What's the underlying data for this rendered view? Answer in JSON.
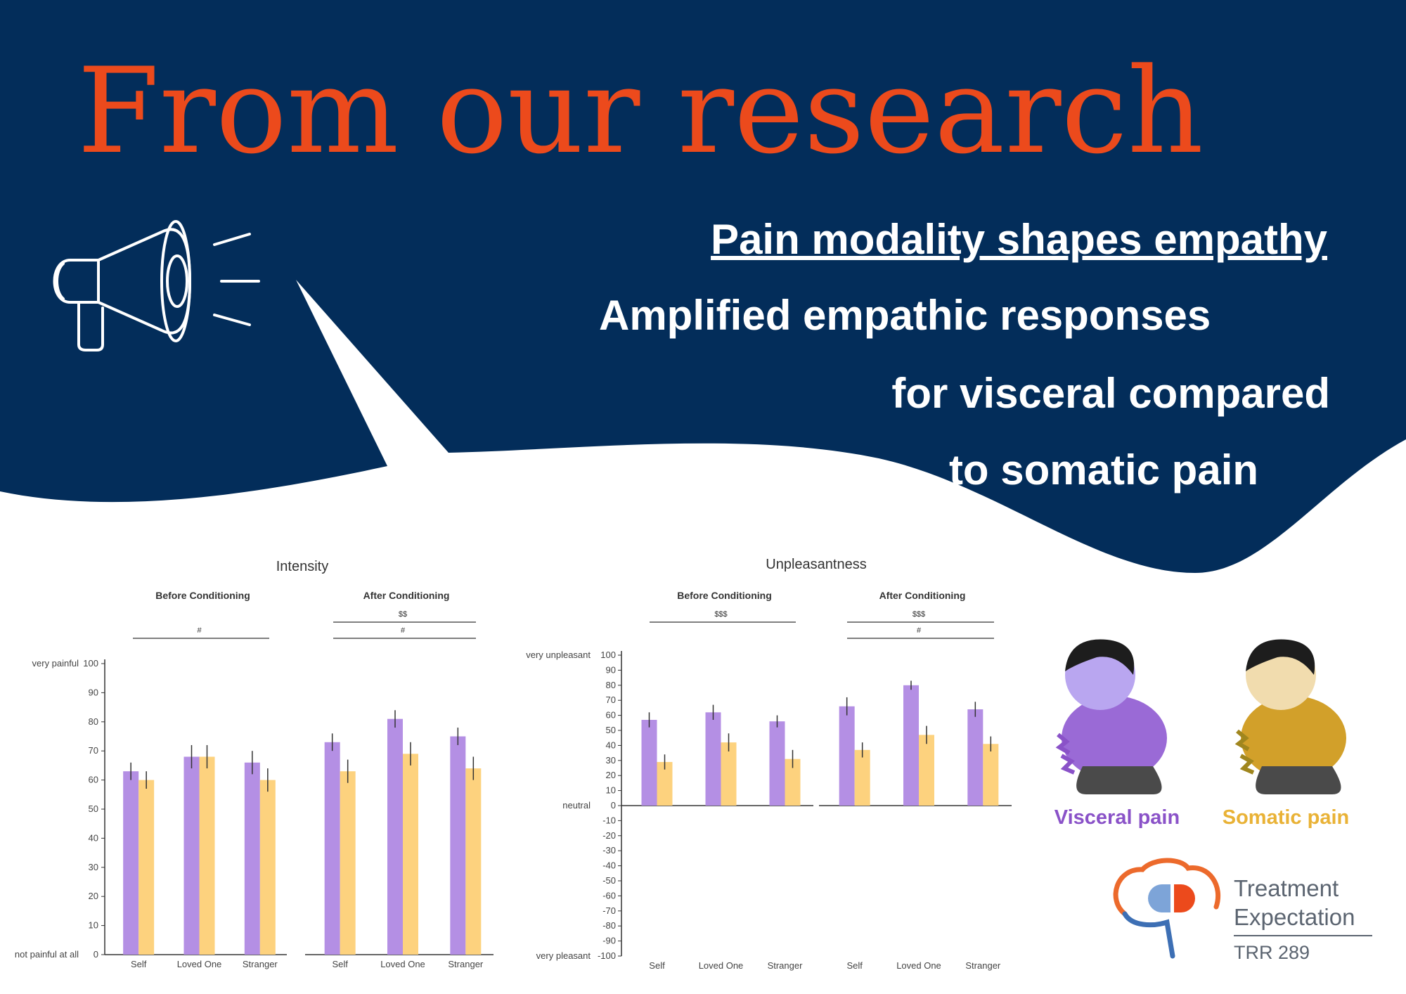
{
  "header": {
    "title": "From our research",
    "headline": "Pain modality shapes empathy",
    "body_lines": [
      "Amplified empathic responses",
      "for visceral compared",
      "to somatic pain"
    ]
  },
  "chart_data": [
    {
      "type": "bar",
      "title": "Intensity",
      "ylim": [
        0,
        100
      ],
      "yticks": [
        0,
        10,
        20,
        30,
        40,
        50,
        60,
        70,
        80,
        90,
        100
      ],
      "y_anchor_labels": [
        {
          "value": 100,
          "label": "very painful"
        },
        {
          "value": 0,
          "label": "not painful at all"
        }
      ],
      "categories": [
        "Self",
        "Loved One",
        "Stranger"
      ],
      "panels": [
        {
          "title": "Before Conditioning",
          "annotations": [
            "#"
          ],
          "series": [
            {
              "color": "#b48fe4",
              "values": [
                63,
                68,
                66
              ],
              "errors": [
                3,
                4,
                4
              ]
            },
            {
              "color": "#fdd27e",
              "values": [
                60,
                68,
                60
              ],
              "errors": [
                3,
                4,
                4
              ]
            }
          ]
        },
        {
          "title": "After Conditioning",
          "annotations": [
            "$$",
            "#"
          ],
          "series": [
            {
              "color": "#b48fe4",
              "values": [
                73,
                81,
                75
              ],
              "errors": [
                3,
                3,
                3
              ]
            },
            {
              "color": "#fdd27e",
              "values": [
                63,
                69,
                64
              ],
              "errors": [
                4,
                4,
                4
              ]
            }
          ]
        }
      ]
    },
    {
      "type": "bar",
      "title": "Unpleasantness",
      "ylim": [
        -100,
        100
      ],
      "yticks": [
        -100,
        -90,
        -80,
        -70,
        -60,
        -50,
        -40,
        -30,
        -20,
        -10,
        0,
        10,
        20,
        30,
        40,
        50,
        60,
        70,
        80,
        90,
        100
      ],
      "y_anchor_labels": [
        {
          "value": 100,
          "label": "very unpleasant"
        },
        {
          "value": 0,
          "label": "neutral"
        },
        {
          "value": -100,
          "label": "very pleasant"
        }
      ],
      "categories": [
        "Self",
        "Loved One",
        "Stranger"
      ],
      "panels": [
        {
          "title": "Before Conditioning",
          "annotations": [
            "$$$"
          ],
          "series": [
            {
              "color": "#b48fe4",
              "values": [
                57,
                62,
                56
              ],
              "errors": [
                5,
                5,
                4
              ]
            },
            {
              "color": "#fdd27e",
              "values": [
                29,
                42,
                31
              ],
              "errors": [
                5,
                6,
                6
              ]
            }
          ]
        },
        {
          "title": "After Conditioning",
          "annotations": [
            "$$$",
            "#"
          ],
          "series": [
            {
              "color": "#b48fe4",
              "values": [
                66,
                80,
                64
              ],
              "errors": [
                6,
                3,
                5
              ]
            },
            {
              "color": "#fdd27e",
              "values": [
                37,
                47,
                41
              ],
              "errors": [
                5,
                6,
                5
              ]
            }
          ]
        }
      ]
    }
  ],
  "legend": [
    {
      "label": "Visceral pain",
      "color": "#8a52c8"
    },
    {
      "label": "Somatic pain",
      "color": "#e9b236"
    }
  ],
  "logo": {
    "name_lines": [
      "Treatment",
      "Expectation"
    ],
    "code": "TRR 289"
  }
}
